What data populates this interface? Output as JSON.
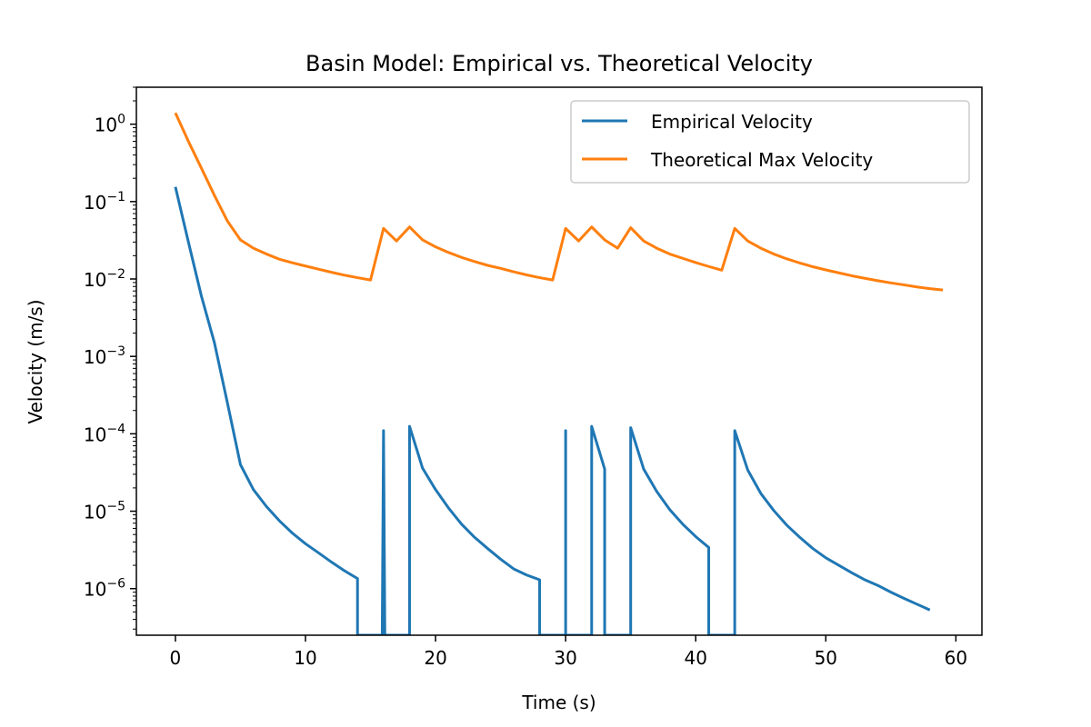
{
  "chart_data": {
    "type": "line",
    "title": "Basin Model: Empirical vs. Theoretical Velocity",
    "xlabel": "Time (s)",
    "ylabel": "Velocity (m/s)",
    "xlim": [
      -3,
      62
    ],
    "ylim": [
      2.5e-07,
      3
    ],
    "yscale": "log",
    "grid": false,
    "legend_position": "top-right",
    "xticks": [
      0,
      10,
      20,
      30,
      40,
      50,
      60
    ],
    "yticks": [
      {
        "value": 1e-06,
        "exp": "−6"
      },
      {
        "value": 1e-05,
        "exp": "−5"
      },
      {
        "value": 0.0001,
        "exp": "−4"
      },
      {
        "value": 0.001,
        "exp": "−3"
      },
      {
        "value": 0.01,
        "exp": "−2"
      },
      {
        "value": 0.1,
        "exp": "−1"
      },
      {
        "value": 1,
        "exp": "0"
      }
    ],
    "series": [
      {
        "name": "Empirical Velocity",
        "color": "#1f77b4",
        "points": [
          [
            0,
            0.155
          ],
          [
            1,
            0.03
          ],
          [
            2,
            0.006
          ],
          [
            3,
            0.0015
          ],
          [
            4,
            0.00025
          ],
          [
            5,
            4e-05
          ],
          [
            6,
            1.9e-05
          ],
          [
            7,
            1.15e-05
          ],
          [
            8,
            7.5e-06
          ],
          [
            9,
            5.2e-06
          ],
          [
            10,
            3.8e-06
          ],
          [
            11,
            2.9e-06
          ],
          [
            12,
            2.2e-06
          ],
          [
            13,
            1.7e-06
          ],
          [
            14,
            1.35e-06
          ],
          [
            14,
            2.5e-07
          ],
          [
            15.9,
            2.5e-07
          ],
          [
            16,
            0.00011
          ],
          [
            16.1,
            2.5e-07
          ],
          [
            18,
            2.5e-07
          ],
          [
            18,
            0.000125
          ],
          [
            19,
            3.6e-05
          ],
          [
            20,
            1.9e-05
          ],
          [
            21,
            1.1e-05
          ],
          [
            22,
            6.8e-06
          ],
          [
            23,
            4.6e-06
          ],
          [
            24,
            3.3e-06
          ],
          [
            25,
            2.4e-06
          ],
          [
            26,
            1.8e-06
          ],
          [
            27,
            1.5e-06
          ],
          [
            28,
            1.3e-06
          ],
          [
            28,
            2.5e-07
          ],
          [
            30,
            2.5e-07
          ],
          [
            30,
            0.00011
          ],
          [
            30,
            2.5e-07
          ],
          [
            32,
            2.5e-07
          ],
          [
            32,
            0.000125
          ],
          [
            33,
            3.5e-05
          ],
          [
            33,
            2.5e-07
          ],
          [
            35,
            2.5e-07
          ],
          [
            35,
            0.00012
          ],
          [
            36,
            3.5e-05
          ],
          [
            37,
            1.8e-05
          ],
          [
            38,
            1.05e-05
          ],
          [
            39,
            6.8e-06
          ],
          [
            40,
            4.7e-06
          ],
          [
            41,
            3.4e-06
          ],
          [
            41,
            2.5e-07
          ],
          [
            43,
            2.5e-07
          ],
          [
            43,
            0.00011
          ],
          [
            44,
            3.4e-05
          ],
          [
            45,
            1.7e-05
          ],
          [
            46,
            1.02e-05
          ],
          [
            47,
            6.6e-06
          ],
          [
            48,
            4.6e-06
          ],
          [
            49,
            3.3e-06
          ],
          [
            50,
            2.5e-06
          ],
          [
            51,
            2e-06
          ],
          [
            52,
            1.6e-06
          ],
          [
            53,
            1.3e-06
          ],
          [
            54,
            1.1e-06
          ],
          [
            55,
            9e-07
          ],
          [
            56,
            7.5e-07
          ],
          [
            57,
            6.3e-07
          ],
          [
            58,
            5.3e-07
          ]
        ]
      },
      {
        "name": "Theoretical Max Velocity",
        "color": "#ff7f0e",
        "points": [
          [
            0,
            1.4
          ],
          [
            1,
            0.6
          ],
          [
            2,
            0.27
          ],
          [
            3,
            0.12
          ],
          [
            4,
            0.056
          ],
          [
            5,
            0.032
          ],
          [
            6,
            0.025
          ],
          [
            7,
            0.021
          ],
          [
            8,
            0.018
          ],
          [
            9,
            0.0162
          ],
          [
            10,
            0.0147
          ],
          [
            11,
            0.0134
          ],
          [
            12,
            0.0122
          ],
          [
            13,
            0.0112
          ],
          [
            14,
            0.0104
          ],
          [
            15,
            0.0097
          ],
          [
            16,
            0.045
          ],
          [
            17,
            0.031
          ],
          [
            18,
            0.047
          ],
          [
            19,
            0.032
          ],
          [
            20,
            0.026
          ],
          [
            21,
            0.022
          ],
          [
            22,
            0.019
          ],
          [
            23,
            0.0168
          ],
          [
            24,
            0.015
          ],
          [
            25,
            0.0137
          ],
          [
            26,
            0.0124
          ],
          [
            27,
            0.0113
          ],
          [
            28,
            0.0104
          ],
          [
            29,
            0.0097
          ],
          [
            30,
            0.045
          ],
          [
            31,
            0.031
          ],
          [
            32,
            0.047
          ],
          [
            33,
            0.032
          ],
          [
            34,
            0.025
          ],
          [
            35,
            0.046
          ],
          [
            36,
            0.031
          ],
          [
            37,
            0.025
          ],
          [
            38,
            0.021
          ],
          [
            39,
            0.0185
          ],
          [
            40,
            0.0163
          ],
          [
            41,
            0.0145
          ],
          [
            42,
            0.013
          ],
          [
            43,
            0.045
          ],
          [
            44,
            0.031
          ],
          [
            45,
            0.025
          ],
          [
            46,
            0.021
          ],
          [
            47,
            0.0182
          ],
          [
            48,
            0.0161
          ],
          [
            49,
            0.0144
          ],
          [
            50,
            0.0131
          ],
          [
            51,
            0.012
          ],
          [
            52,
            0.011
          ],
          [
            53,
            0.0102
          ],
          [
            54,
            0.0095
          ],
          [
            55,
            0.0089
          ],
          [
            56,
            0.0084
          ],
          [
            57,
            0.0079
          ],
          [
            58,
            0.0075
          ],
          [
            59,
            0.0072
          ]
        ]
      }
    ]
  }
}
